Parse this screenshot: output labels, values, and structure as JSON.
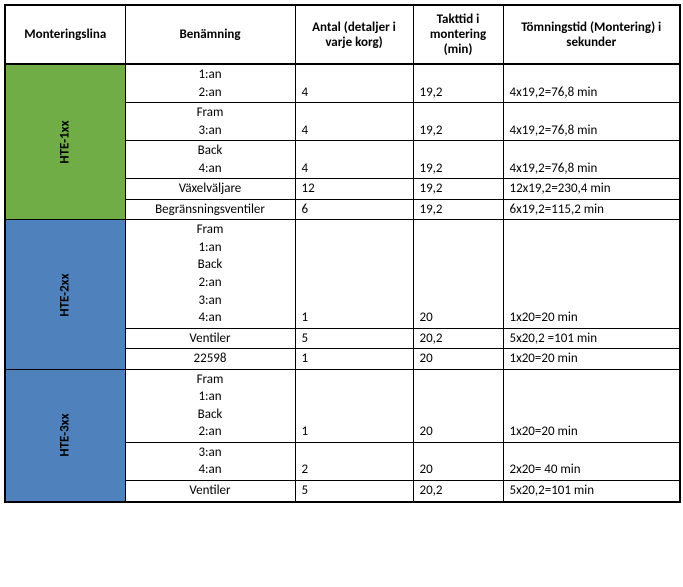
{
  "colors": {
    "green": "#70ad47",
    "blue": "#4f81bd",
    "border": "#000000",
    "bg": "#ffffff"
  },
  "headers": {
    "line": "Monteringslina",
    "name": "Benämning",
    "antal": "Antal (detaljer i varje korg)",
    "takt": "Takttid i montering (min)",
    "tom": "Tömningstid (Montering) i sekunder"
  },
  "groups": [
    {
      "line": "HTE-1xx",
      "color": "green",
      "rows": [
        {
          "names": [
            "1:an",
            "2:an"
          ],
          "antal": "4",
          "takt": "19,2",
          "tom": "4x19,2=76,8 min"
        },
        {
          "names": [
            "Fram",
            "3:an"
          ],
          "antal": "4",
          "takt": "19,2",
          "tom": "4x19,2=76,8 min"
        },
        {
          "names": [
            "Back",
            "4:an"
          ],
          "antal": "4",
          "takt": "19,2",
          "tom": "4x19,2=76,8 min"
        },
        {
          "names": [
            "Växelväljare"
          ],
          "antal": "12",
          "takt": "19,2",
          "tom": "12x19,2=230,4 min",
          "valign": "top"
        },
        {
          "names": [
            "Begränsningsventiler"
          ],
          "antal": "6",
          "takt": "19,2",
          "tom": "6x19,2=115,2 min",
          "valign": "top"
        }
      ]
    },
    {
      "line": "HTE-2xx",
      "color": "blue",
      "rows": [
        {
          "names": [
            "Fram",
            "1:an",
            "Back",
            "2:an",
            "3:an",
            "4:an"
          ],
          "antal": "1",
          "takt": "20",
          "tom": "1x20=20 min"
        },
        {
          "names": [
            "Ventiler"
          ],
          "antal": "5",
          "takt": "20,2",
          "tom": "5x20,2 =101 min"
        },
        {
          "names": [
            "22598"
          ],
          "antal": "1",
          "takt": "20",
          "tom": "1x20=20 min"
        }
      ]
    },
    {
      "line": "HTE-3xx",
      "color": "blue",
      "rows": [
        {
          "names": [
            "Fram",
            "1:an",
            "Back",
            "2:an"
          ],
          "antal": "1",
          "takt": "20",
          "tom": "1x20=20 min"
        },
        {
          "names": [
            "3:an",
            "4:an"
          ],
          "antal": "2",
          "takt": "20",
          "tom": "2x20= 40 min"
        },
        {
          "names": [
            "Ventiler"
          ],
          "antal": "5",
          "takt": "20,2",
          "tom": "5x20,2=101 min"
        }
      ]
    }
  ]
}
